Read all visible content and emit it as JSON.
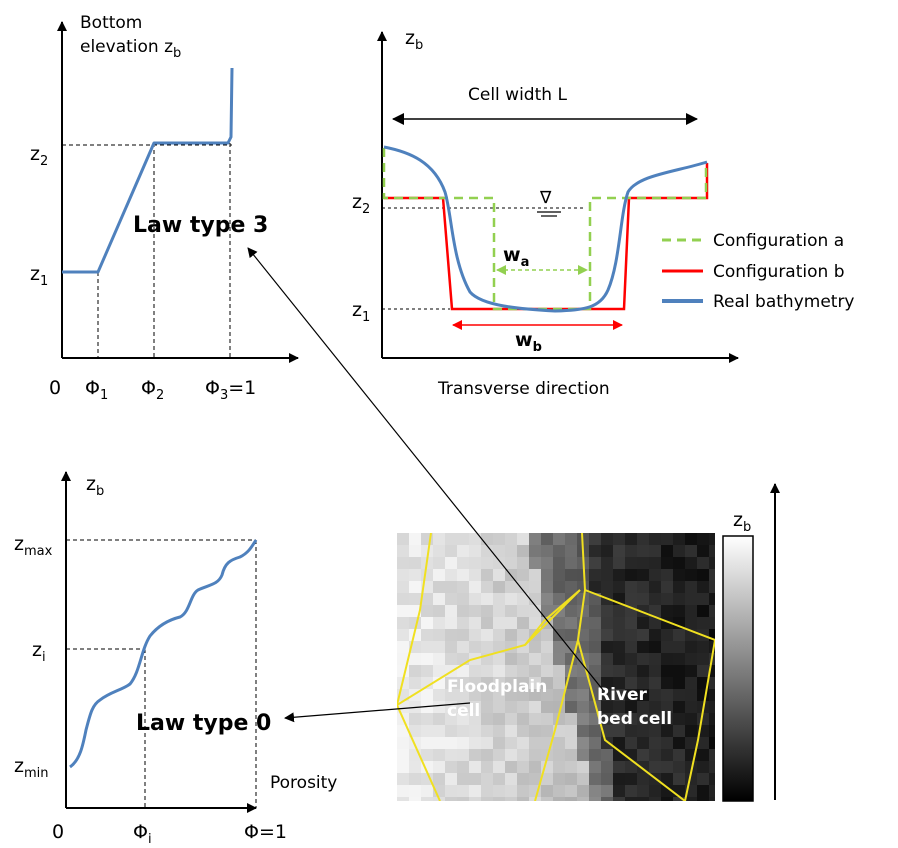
{
  "panel_law3": {
    "y_title_line1": "Bottom",
    "y_title_line2": "elevation z",
    "y_title_sub": "b",
    "tick_z2": "z",
    "tick_z2_sub": "2",
    "tick_z1": "z",
    "tick_z1_sub": "1",
    "x_origin": "0",
    "x_phi1": "Φ",
    "x_phi1_sub": "1",
    "x_phi2": "Φ",
    "x_phi2_sub": "2",
    "x_phi3": "Φ",
    "x_phi3_sub": "3",
    "x_phi3_suffix": "=1",
    "law_label": "Law type 3"
  },
  "panel_section": {
    "y_axis": "z",
    "y_axis_sub": "b",
    "cell_width_label": "Cell width L",
    "tick_z2": "z",
    "tick_z2_sub": "2",
    "tick_z1": "z",
    "tick_z1_sub": "1",
    "wa": "w",
    "wa_sub": "a",
    "wb": "w",
    "wb_sub": "b",
    "x_axis": "Transverse direction",
    "water_symbol": "∇",
    "legend": [
      {
        "label": "Configuration a",
        "color": "#92d050",
        "style": "dashed"
      },
      {
        "label": "Configuration b",
        "color": "#ff0000",
        "style": "solid"
      },
      {
        "label": "Real bathymetry",
        "color": "#4f81bd",
        "style": "solid"
      }
    ]
  },
  "panel_law0": {
    "y_axis": "z",
    "y_axis_sub": "b",
    "tick_zmax": "z",
    "tick_zmax_sub": "max",
    "tick_zi": "z",
    "tick_zi_sub": "i",
    "tick_zmin": "z",
    "tick_zmin_sub": "min",
    "x_origin": "0",
    "x_phii": "Φ",
    "x_phii_sub": "i",
    "x_phi_end": "Φ=1",
    "x_axis": "Porosity",
    "law_label": "Law type 0"
  },
  "panel_mesh": {
    "colorbar_label": "z",
    "colorbar_sub": "b",
    "floodplain_line1": "Floodplain",
    "floodplain_line2": "cell",
    "river_line1": "River",
    "river_line2": "bed cell",
    "mesh_color": "#f0e020"
  }
}
